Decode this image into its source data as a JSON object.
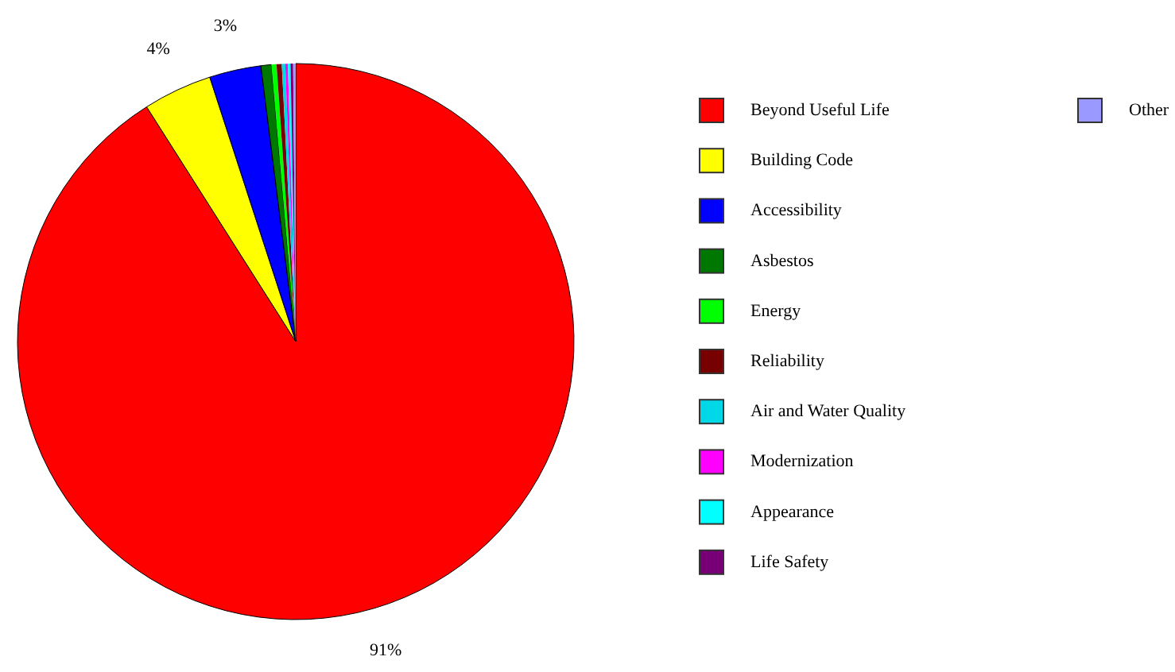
{
  "chart_data": {
    "type": "pie",
    "categories": [
      "Beyond Useful Life",
      "Building Code",
      "Accessibility",
      "Asbestos",
      "Energy",
      "Reliability",
      "Air and Water Quality",
      "Modernization",
      "Appearance",
      "Life Safety",
      "Other"
    ],
    "values": [
      91,
      4,
      3,
      0.6,
      0.3,
      0.3,
      0.2,
      0.15,
      0.15,
      0.15,
      0.15
    ],
    "colors": [
      "#ff0000",
      "#ffff00",
      "#0000ff",
      "#007700",
      "#00ff00",
      "#770000",
      "#00d8e8",
      "#ff00ff",
      "#00ffff",
      "#770077",
      "#9999ff"
    ],
    "value_labels": [
      "91%",
      "4%",
      "3%",
      null,
      null,
      null,
      null,
      null,
      null,
      null,
      null
    ],
    "legend": "right"
  }
}
